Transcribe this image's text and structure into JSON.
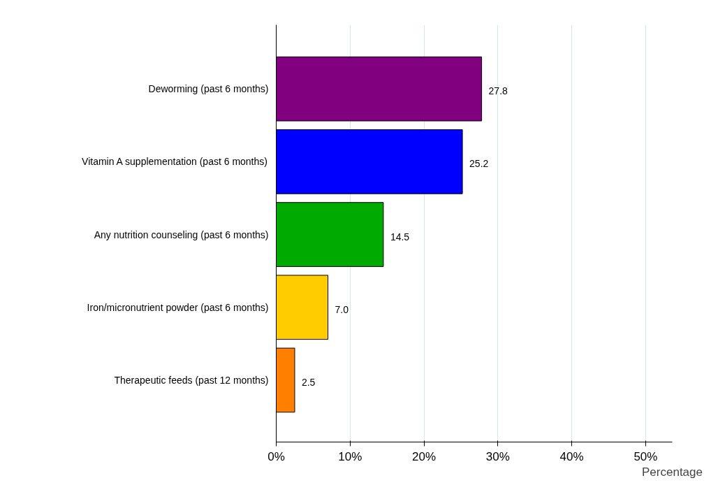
{
  "chart_data": {
    "type": "bar",
    "orientation": "horizontal",
    "xlabel": "Percentage",
    "categories": [
      "Deworming (past 6 months)",
      "Vitamin A supplementation (past 6 months)",
      "Any nutrition counseling (past 6 months)",
      "Iron/micronutrient powder (past 6 months)",
      "Therapeutic feeds (past 12 months)"
    ],
    "values": [
      27.8,
      25.2,
      14.5,
      7.0,
      2.5
    ],
    "colors": [
      "#800080",
      "#0000ff",
      "#00aa00",
      "#ffcc00",
      "#ff7f00"
    ],
    "xlim": [
      0,
      53.6
    ],
    "xticks": [
      {
        "value": 0,
        "label": "0%"
      },
      {
        "value": 10,
        "label": "10%"
      },
      {
        "value": 20,
        "label": "20%"
      },
      {
        "value": 30,
        "label": "30%"
      },
      {
        "value": 40,
        "label": "40%"
      },
      {
        "value": 50,
        "label": "50%"
      }
    ],
    "value_labels": [
      "27.8",
      "25.2",
      "14.5",
      "7.0",
      "2.5"
    ],
    "grid": "x"
  }
}
